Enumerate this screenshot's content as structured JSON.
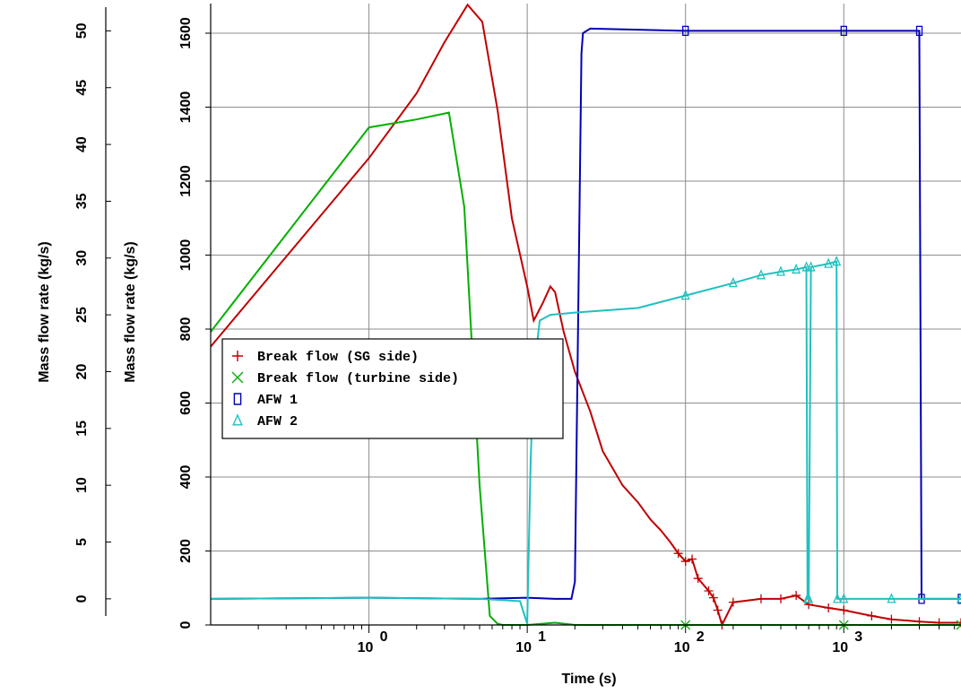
{
  "chart_data": {
    "type": "line",
    "xlabel": "Time (s)",
    "ylabel_left": "Mass flow rate (kg/s)",
    "ylabel_right": "Mass flow rate (kg/s)",
    "x_scale": "log",
    "xlim": [
      0.1,
      5500
    ],
    "ylim_outer": [
      -2.3,
      52.4
    ],
    "ylim_inner": [
      0,
      1680
    ],
    "x_tick_labels": [
      {
        "value": 1,
        "base": "10",
        "exp": "0"
      },
      {
        "value": 10,
        "base": "10",
        "exp": "1"
      },
      {
        "value": 100,
        "base": "10",
        "exp": "2"
      },
      {
        "value": 1000,
        "base": "10",
        "exp": "3"
      }
    ],
    "y_ticks_outer": [
      0,
      5,
      10,
      15,
      20,
      25,
      30,
      35,
      40,
      45,
      50
    ],
    "y_ticks_inner": [
      0,
      200,
      400,
      600,
      800,
      1000,
      1200,
      1400,
      1600
    ],
    "grid": true,
    "legend_position": "middle-left",
    "series": [
      {
        "name": "Break flow (SG side)",
        "color": "#c00000",
        "marker": "plus",
        "axis": "outer",
        "x": [
          0.1,
          1,
          2,
          3,
          4.2,
          5.2,
          6.5,
          8,
          10,
          11,
          12.5,
          14,
          15,
          17,
          20,
          25,
          30,
          40,
          50,
          60,
          70,
          80,
          90,
          100,
          110,
          120,
          140,
          150,
          160,
          170,
          200,
          300,
          400,
          500,
          600,
          800,
          1000,
          1500,
          2000,
          3000,
          4000,
          5500
        ],
        "y": [
          22.2,
          38.8,
          44.5,
          49,
          52.3,
          50.8,
          43,
          33.5,
          27.5,
          24.5,
          26,
          27.5,
          27,
          23.5,
          20,
          16.5,
          13,
          10,
          8.5,
          7,
          6,
          5,
          4,
          3.3,
          3.5,
          1.8,
          0.7,
          0.1,
          -1,
          -2.3,
          -0.3,
          0,
          0,
          0.3,
          -0.5,
          -0.8,
          -1,
          -1.5,
          -1.8,
          -2,
          -2.1,
          -2.1
        ]
      },
      {
        "name": "Break flow (turbine side)",
        "color": "#00b000",
        "marker": "x",
        "axis": "outer",
        "x": [
          0.1,
          1,
          2,
          3.2,
          4,
          5,
          5.8,
          6.5,
          7,
          7.5,
          10,
          15,
          20,
          100,
          1000,
          5500
        ],
        "y": [
          23.5,
          41.5,
          42.2,
          42.8,
          34.5,
          10,
          -1.5,
          -2.2,
          -2.3,
          -2.3,
          -2.3,
          -2.1,
          -2.3,
          -2.3,
          -2.3,
          -2.3
        ]
      },
      {
        "name": "AFW 1",
        "color": "#0000b4",
        "marker": "square",
        "axis": "outer",
        "x": [
          0.1,
          1,
          5,
          10,
          15,
          19,
          20,
          21,
          22,
          22.5,
          25,
          100,
          1000,
          3000,
          3100,
          5500
        ],
        "y": [
          0,
          0.1,
          0,
          0.1,
          0,
          0,
          1.5,
          25,
          48,
          49.8,
          50.2,
          50,
          50,
          50,
          0,
          0
        ]
      },
      {
        "name": "AFW 2",
        "color": "#20c0c0",
        "marker": "triangle",
        "axis": "outer",
        "x": [
          0.1,
          1,
          5,
          9,
          10,
          10.5,
          11,
          12,
          14,
          20,
          50,
          100,
          200,
          300,
          400,
          500,
          580,
          590,
          600,
          620,
          800,
          900,
          910,
          1000,
          2000,
          5500
        ],
        "y": [
          0,
          0.1,
          0,
          -0.2,
          -2.2,
          12,
          20,
          24.5,
          25,
          25.2,
          25.6,
          26.7,
          27.8,
          28.5,
          28.8,
          29,
          29.2,
          0,
          0,
          29.2,
          29.5,
          29.7,
          0,
          0,
          0,
          0
        ]
      }
    ]
  }
}
